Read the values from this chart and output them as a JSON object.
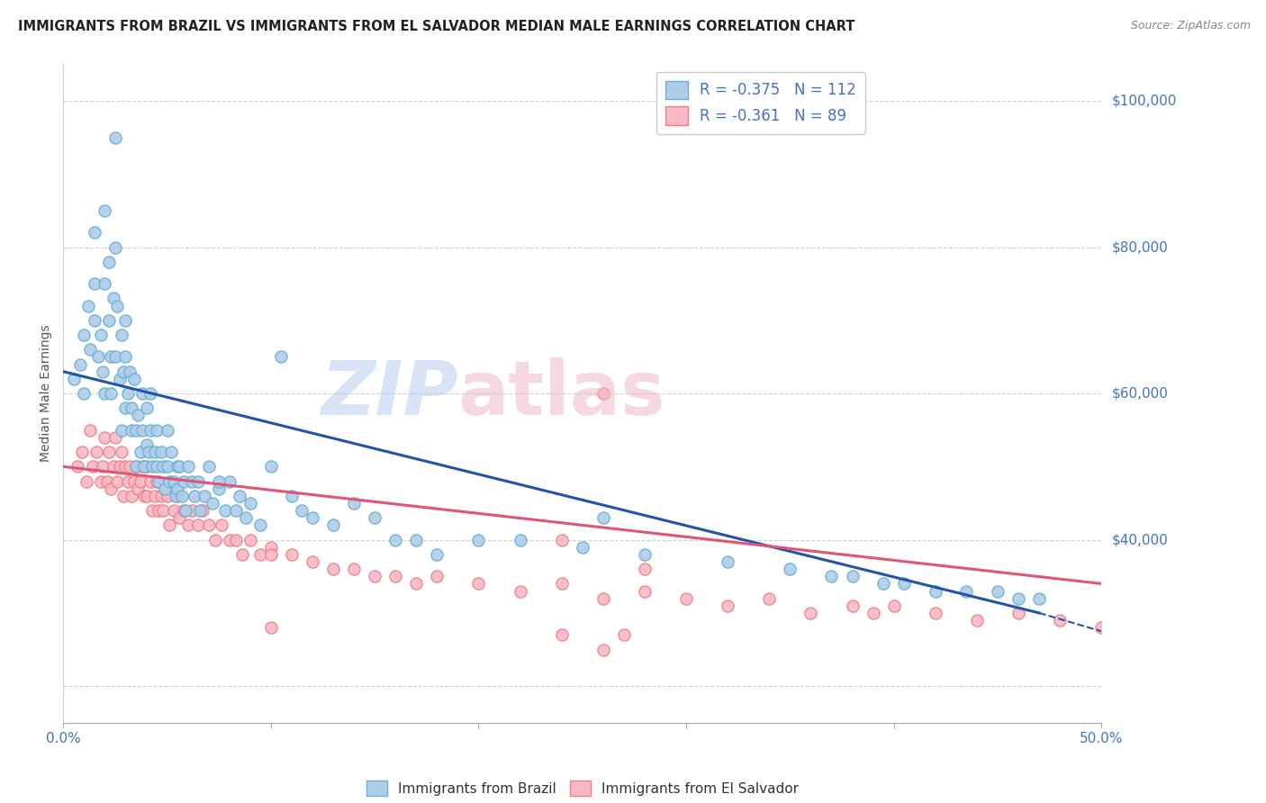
{
  "title": "IMMIGRANTS FROM BRAZIL VS IMMIGRANTS FROM EL SALVADOR MEDIAN MALE EARNINGS CORRELATION CHART",
  "source": "Source: ZipAtlas.com",
  "ylabel": "Median Male Earnings",
  "brazil_R": -0.375,
  "brazil_N": 112,
  "elsalvador_R": -0.361,
  "elsalvador_N": 89,
  "xlim": [
    0.0,
    0.5
  ],
  "ylim": [
    15000,
    105000
  ],
  "brazil_color_edge": "#6baed6",
  "brazil_color_fill": "#aecde8",
  "elsalvador_color_edge": "#f08080",
  "elsalvador_color_fill": "#f8b8c8",
  "brazil_line_color": "#2255aa",
  "salvador_line_color": "#e05575",
  "right_label_color": "#4472c4",
  "grid_color": "#d0d0d0",
  "background_color": "#ffffff",
  "title_color": "#222222",
  "source_color": "#888888",
  "brazil_line": [
    0.0,
    63000,
    0.47,
    30000
  ],
  "brazil_dash": [
    0.47,
    30000,
    0.5,
    27500
  ],
  "salvador_line": [
    0.0,
    50000,
    0.5,
    34000
  ],
  "brazil_scatter_x": [
    0.005,
    0.008,
    0.01,
    0.01,
    0.012,
    0.013,
    0.015,
    0.015,
    0.015,
    0.017,
    0.018,
    0.019,
    0.02,
    0.02,
    0.02,
    0.022,
    0.022,
    0.023,
    0.023,
    0.024,
    0.025,
    0.025,
    0.025,
    0.026,
    0.027,
    0.028,
    0.028,
    0.029,
    0.03,
    0.03,
    0.03,
    0.031,
    0.032,
    0.033,
    0.033,
    0.034,
    0.035,
    0.035,
    0.036,
    0.037,
    0.038,
    0.038,
    0.039,
    0.04,
    0.04,
    0.041,
    0.042,
    0.042,
    0.043,
    0.044,
    0.045,
    0.045,
    0.046,
    0.047,
    0.048,
    0.049,
    0.05,
    0.05,
    0.051,
    0.052,
    0.053,
    0.054,
    0.055,
    0.055,
    0.056,
    0.057,
    0.058,
    0.059,
    0.06,
    0.062,
    0.063,
    0.065,
    0.066,
    0.068,
    0.07,
    0.072,
    0.075,
    0.078,
    0.08,
    0.083,
    0.085,
    0.088,
    0.09,
    0.095,
    0.1,
    0.105,
    0.11,
    0.115,
    0.12,
    0.13,
    0.14,
    0.15,
    0.16,
    0.17,
    0.18,
    0.2,
    0.22,
    0.25,
    0.28,
    0.32,
    0.35,
    0.37,
    0.38,
    0.395,
    0.405,
    0.42,
    0.435,
    0.45,
    0.46,
    0.47,
    0.075,
    0.26
  ],
  "brazil_scatter_y": [
    62000,
    64000,
    68000,
    60000,
    72000,
    66000,
    82000,
    75000,
    70000,
    65000,
    68000,
    63000,
    85000,
    75000,
    60000,
    78000,
    70000,
    65000,
    60000,
    73000,
    95000,
    80000,
    65000,
    72000,
    62000,
    68000,
    55000,
    63000,
    70000,
    65000,
    58000,
    60000,
    63000,
    55000,
    58000,
    62000,
    55000,
    50000,
    57000,
    52000,
    60000,
    55000,
    50000,
    58000,
    53000,
    52000,
    60000,
    55000,
    50000,
    52000,
    55000,
    50000,
    48000,
    52000,
    50000,
    47000,
    55000,
    50000,
    48000,
    52000,
    48000,
    46000,
    50000,
    47000,
    50000,
    46000,
    48000,
    44000,
    50000,
    48000,
    46000,
    48000,
    44000,
    46000,
    50000,
    45000,
    47000,
    44000,
    48000,
    44000,
    46000,
    43000,
    45000,
    42000,
    50000,
    65000,
    46000,
    44000,
    43000,
    42000,
    45000,
    43000,
    40000,
    40000,
    38000,
    40000,
    40000,
    39000,
    38000,
    37000,
    36000,
    35000,
    35000,
    34000,
    34000,
    33000,
    33000,
    33000,
    32000,
    32000,
    48000,
    43000
  ],
  "salvador_scatter_x": [
    0.007,
    0.009,
    0.011,
    0.013,
    0.014,
    0.016,
    0.018,
    0.019,
    0.02,
    0.021,
    0.022,
    0.023,
    0.024,
    0.025,
    0.026,
    0.027,
    0.028,
    0.029,
    0.03,
    0.031,
    0.032,
    0.033,
    0.034,
    0.035,
    0.036,
    0.037,
    0.038,
    0.039,
    0.04,
    0.04,
    0.042,
    0.043,
    0.044,
    0.045,
    0.046,
    0.047,
    0.048,
    0.05,
    0.051,
    0.053,
    0.055,
    0.056,
    0.058,
    0.06,
    0.062,
    0.065,
    0.067,
    0.07,
    0.073,
    0.076,
    0.08,
    0.083,
    0.086,
    0.09,
    0.095,
    0.1,
    0.11,
    0.12,
    0.13,
    0.14,
    0.15,
    0.16,
    0.17,
    0.18,
    0.2,
    0.22,
    0.24,
    0.26,
    0.28,
    0.3,
    0.32,
    0.34,
    0.36,
    0.38,
    0.39,
    0.4,
    0.42,
    0.44,
    0.46,
    0.48,
    0.5,
    0.28,
    0.26,
    0.24,
    0.1,
    0.26,
    0.1,
    0.24,
    0.27
  ],
  "salvador_scatter_y": [
    50000,
    52000,
    48000,
    55000,
    50000,
    52000,
    48000,
    50000,
    54000,
    48000,
    52000,
    47000,
    50000,
    54000,
    48000,
    50000,
    52000,
    46000,
    50000,
    48000,
    50000,
    46000,
    48000,
    50000,
    47000,
    48000,
    50000,
    46000,
    50000,
    46000,
    48000,
    44000,
    46000,
    48000,
    44000,
    46000,
    44000,
    46000,
    42000,
    44000,
    46000,
    43000,
    44000,
    42000,
    44000,
    42000,
    44000,
    42000,
    40000,
    42000,
    40000,
    40000,
    38000,
    40000,
    38000,
    39000,
    38000,
    37000,
    36000,
    36000,
    35000,
    35000,
    34000,
    35000,
    34000,
    33000,
    34000,
    32000,
    33000,
    32000,
    31000,
    32000,
    30000,
    31000,
    30000,
    31000,
    30000,
    29000,
    30000,
    29000,
    28000,
    36000,
    60000,
    40000,
    28000,
    25000,
    38000,
    27000,
    27000
  ],
  "xtick_positions": [
    0.0,
    0.1,
    0.2,
    0.3,
    0.4,
    0.5
  ],
  "xtick_labels_shown": {
    "0.0": "0.0%",
    "0.5": "50.0%"
  },
  "ytick_right": {
    "100000": "$100,000",
    "80000": "$80,000",
    "60000": "$60,000",
    "40000": "$40,000"
  }
}
